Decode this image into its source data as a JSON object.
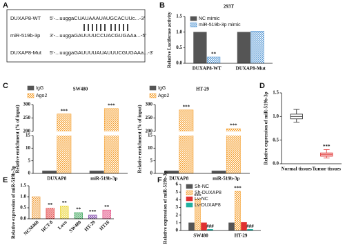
{
  "panel_labels": [
    "A",
    "B",
    "C",
    "D",
    "E",
    "F"
  ],
  "panel_a": {
    "rows": [
      {
        "name": "DUXAP8-WT",
        "sequence": "5'-...uuggaCUAUAAAUAUGCACUUc...-3'"
      },
      {
        "name": "miR-519b-3p",
        "sequence": "3'-...uuggaGAUUUUCCUACGUGAAa...-5'"
      },
      {
        "name": "DUXAP8-Mut",
        "sequence": "5'-...uuggaGAUUUUAUAUUUCGUGAAa...-3'"
      }
    ]
  },
  "chart_data": [
    {
      "type": "bar",
      "title": "293T",
      "y_label": "Relative Luciferase activity",
      "categories": [
        "DUXAP8-WT",
        "DUXAP8-Mut"
      ],
      "series": [
        {
          "name": "NC mimic",
          "color": "#555555",
          "values": [
            1.0,
            1.0
          ]
        },
        {
          "name": "miR-519b-3p mimic",
          "color": "#5b9bd5",
          "pattern": "checker",
          "values": [
            0.2,
            1.03
          ],
          "significance": [
            "**",
            null
          ]
        }
      ],
      "ylim": [
        0,
        1.5
      ],
      "yticks": [
        {
          "value": 0,
          "label": "0.0"
        },
        {
          "value": 0.5,
          "label": "0.5"
        },
        {
          "value": 1,
          "label": "1.0"
        },
        {
          "value": 1.5,
          "label": "1.5"
        }
      ],
      "legend": "upper left"
    },
    {
      "type": "bar",
      "title": "SW480",
      "y_label": "Relative  enrichment (% of input)",
      "categories": [
        "DUXAP8",
        "miR-519b-3p"
      ],
      "series": [
        {
          "name": "IgG",
          "color": "#555555",
          "values": [
            1,
            1
          ]
        },
        {
          "name": "Ago2",
          "color": "#f5a030",
          "pattern": "checker",
          "values": [
            265,
            285
          ],
          "significance": [
            "***",
            "***"
          ]
        }
      ],
      "ylim": [
        0,
        300
      ],
      "ybreak": [
        15,
        200
      ],
      "yticks": [
        0,
        5,
        10,
        15,
        200,
        250,
        300
      ],
      "legend": "above"
    },
    {
      "type": "bar",
      "title": "HT-29",
      "y_label": "Relative  enrichment (% of input)",
      "categories": [
        "DUXAP8",
        "miR-519b-3p"
      ],
      "series": [
        {
          "name": "IgG",
          "color": "#555555",
          "values": [
            1,
            1
          ]
        },
        {
          "name": "Ago2",
          "color": "#f5a030",
          "pattern": "checker",
          "values": [
            280,
            210
          ],
          "significance": [
            "***",
            "***"
          ]
        }
      ],
      "ylim": [
        0,
        300
      ],
      "ybreak": [
        15,
        200
      ],
      "yticks": [
        0,
        5,
        10,
        15,
        200,
        250,
        300
      ],
      "legend": "above"
    },
    {
      "type": "box",
      "y_label": "Relative expression of miR-519b-3p",
      "categories": [
        "Normal tissues",
        "Tumor tissues"
      ],
      "boxes": [
        {
          "min": 0.88,
          "q1": 0.95,
          "median": 1.0,
          "q3": 1.05,
          "max": 1.15
        },
        {
          "min": 0.12,
          "q1": 0.16,
          "median": 0.2,
          "q3": 0.23,
          "max": 0.3
        }
      ],
      "colors": [
        "#222222",
        "#e03030"
      ],
      "significance": [
        null,
        "***"
      ],
      "ylim": [
        0,
        1.5
      ],
      "yticks": [
        {
          "value": 0,
          "label": "0.0"
        },
        {
          "value": 0.5,
          "label": "0.5"
        },
        {
          "value": 1,
          "label": "1.0"
        },
        {
          "value": 1.5,
          "label": "1.5"
        }
      ]
    },
    {
      "type": "bar",
      "y_label": "Relative expression of miR-519b-3p",
      "categories": [
        "NCM460",
        "HCT-8",
        "Lovo",
        "SW480",
        "HT-29",
        "HT16"
      ],
      "values": [
        1.0,
        0.48,
        0.58,
        0.28,
        0.17,
        0.4
      ],
      "colors": [
        "#f0a040",
        "#e03030",
        "#e8d020",
        "#30a050",
        "#7030a0",
        "#e0407a"
      ],
      "pattern": "checker",
      "significance": [
        null,
        "**",
        "**",
        "**",
        "***",
        "**"
      ],
      "xtick_rotation": 45,
      "ylim": [
        0,
        1.5
      ],
      "yticks": [
        {
          "value": 0,
          "label": "0.0"
        },
        {
          "value": 0.5,
          "label": "0.5"
        },
        {
          "value": 1,
          "label": "1.0"
        },
        {
          "value": 1.5,
          "label": "1.5"
        }
      ]
    },
    {
      "type": "bar",
      "y_label": "Relative expression of miR-519b-3p",
      "categories": [
        "SW480",
        "HT-29"
      ],
      "series": [
        {
          "name": "Sh-NC",
          "color": "#555555",
          "values": [
            1.0,
            1.0
          ]
        },
        {
          "name": "Sh-DUXAP8",
          "color": "#f5a030",
          "pattern": "checker",
          "values": [
            4.1,
            5.1
          ],
          "significance": [
            "***",
            "***"
          ]
        },
        {
          "name": "Lv-NC",
          "color": "#e03030",
          "values": [
            1.0,
            1.05
          ]
        },
        {
          "name": "Lv-DUXAP8",
          "color": "#20b0a0",
          "values": [
            0.15,
            0.15
          ],
          "significance": [
            "###",
            "###"
          ]
        }
      ],
      "ylim": [
        0,
        6
      ],
      "yticks": [
        0,
        1,
        2,
        3,
        4,
        5,
        6
      ],
      "legend": "upper left"
    }
  ]
}
